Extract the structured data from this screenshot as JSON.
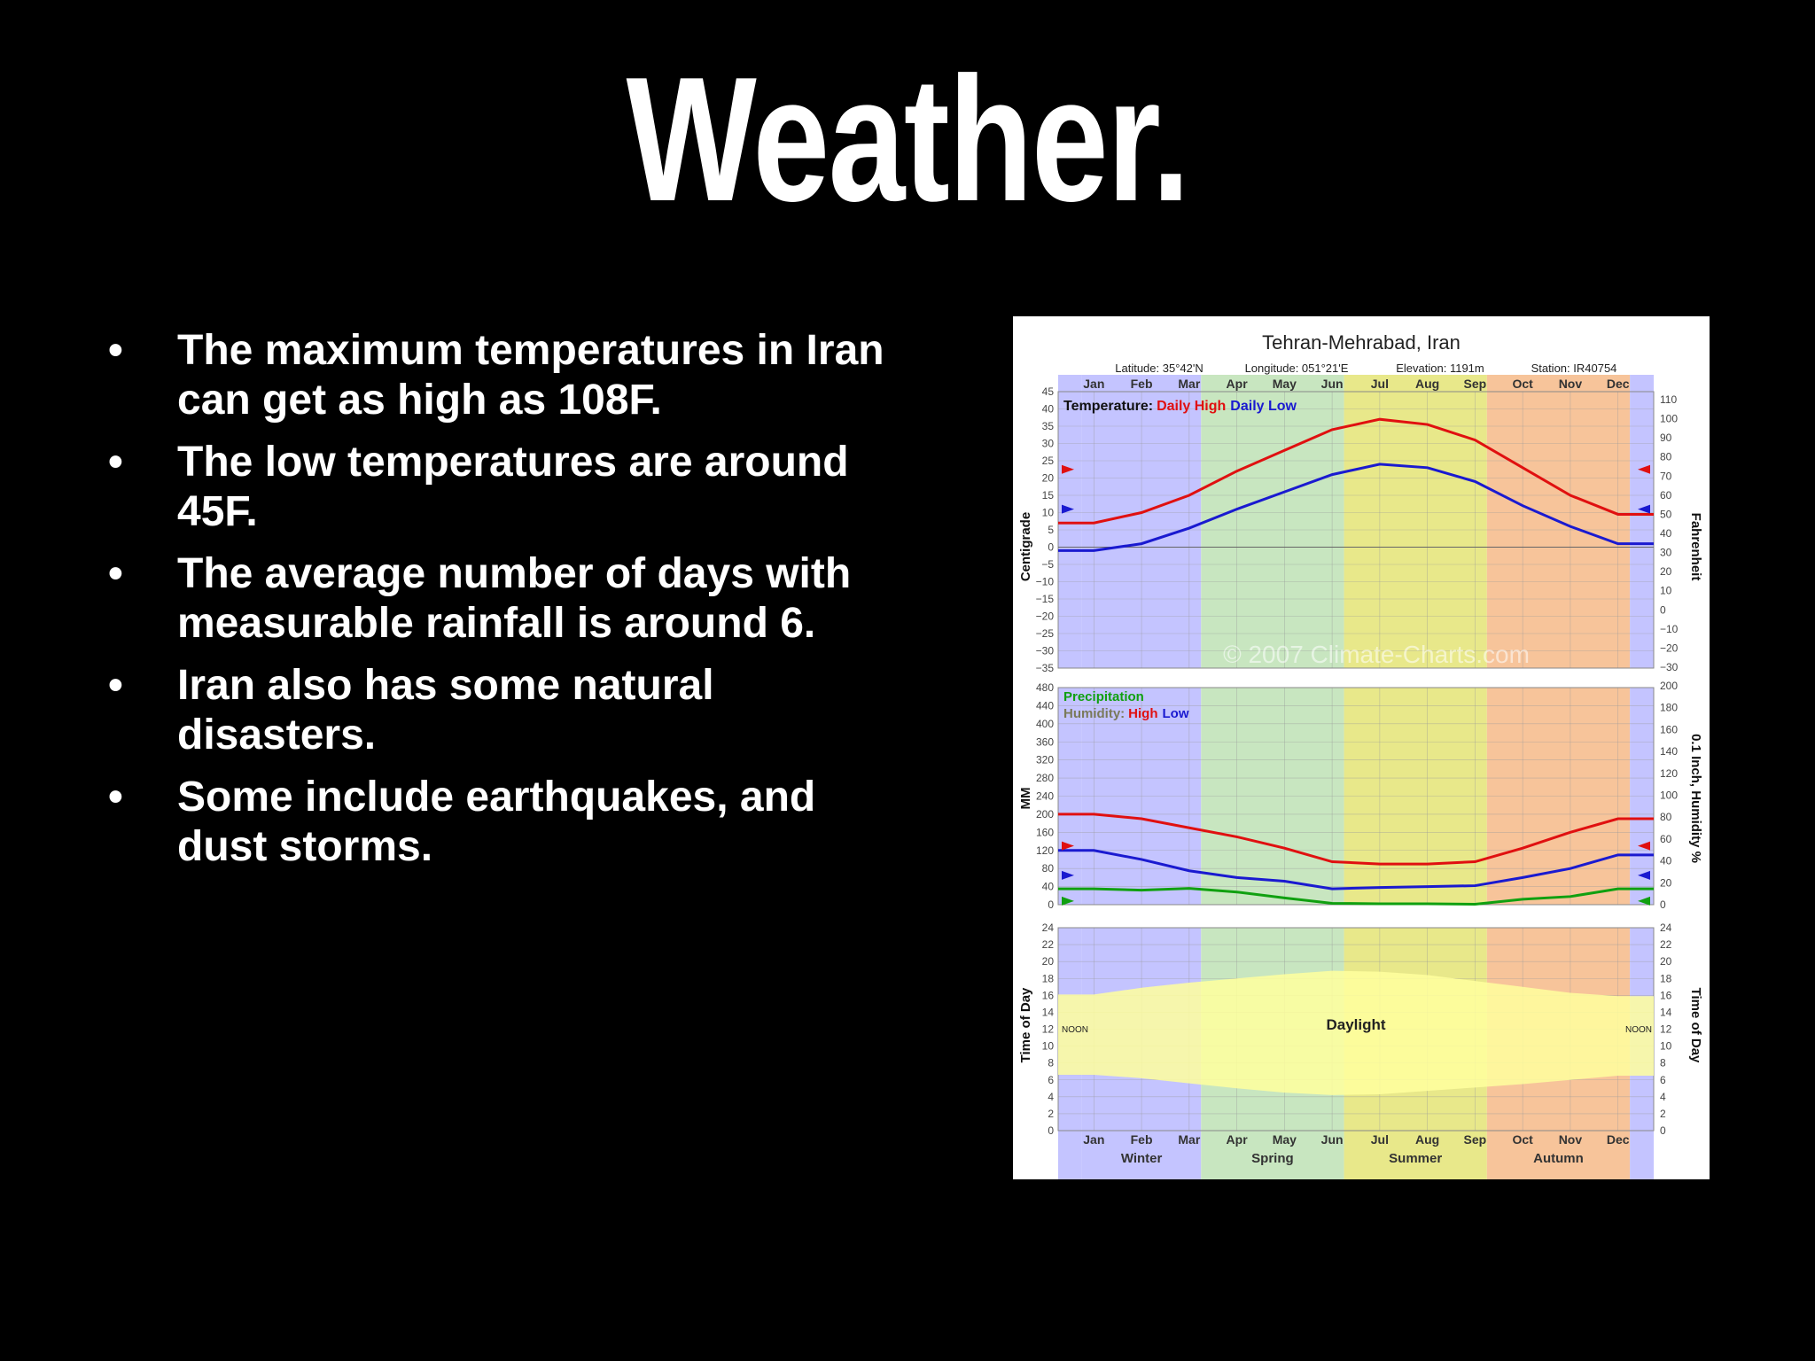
{
  "slide": {
    "title": "Weather.",
    "bullet_glyph": "•",
    "bullets": [
      "The maximum temperatures in Iran can get as high as 108F.",
      "The low temperatures are around 45F.",
      "The average number of days with measurable rainfall is around 6.",
      "Iran also has some natural disasters.",
      "Some include earthquakes, and dust storms."
    ]
  },
  "colors": {
    "temp_high": "#e01010",
    "temp_low": "#1a1ad0",
    "precip": "#10a010",
    "winter": "#c4c4ff",
    "spring": "#c8e6c0",
    "summer": "#e8e88a",
    "autumn": "#f7c49a",
    "daylight": "#ffff9e"
  },
  "chart_data": {
    "title": "Tehran-Mehrabad,  Iran",
    "info": {
      "latitude": "Latitude: 35°42'N",
      "longitude": "Longitude: 051°21'E",
      "elevation": "Elevation: 1191m",
      "station": "Station: IR40754"
    },
    "watermark": "© 2007 Climate-Charts.com",
    "months": [
      "Jan",
      "Feb",
      "Mar",
      "Apr",
      "May",
      "Jun",
      "Jul",
      "Aug",
      "Sep",
      "Oct",
      "Nov",
      "Dec"
    ],
    "seasons": [
      {
        "name": "Winter",
        "color": "#c4c4ff",
        "start": 0,
        "end": 2.5
      },
      {
        "name": "Spring",
        "color": "#c8e6c0",
        "start": 2.5,
        "end": 5.5
      },
      {
        "name": "Summer",
        "color": "#e8e88a",
        "start": 5.5,
        "end": 8.5
      },
      {
        "name": "Autumn",
        "color": "#f7c49a",
        "start": 8.5,
        "end": 11.5
      }
    ],
    "temperature": {
      "type": "line",
      "legend_label": "Temperature:",
      "series": [
        {
          "name": "Daily High",
          "color": "#e01010",
          "values": [
            7,
            10,
            15,
            22,
            28,
            34,
            37,
            35.5,
            31,
            23,
            15,
            9.5
          ]
        },
        {
          "name": "Daily Low",
          "color": "#1a1ad0",
          "values": [
            -1,
            1,
            5.5,
            11,
            16,
            21,
            24,
            23,
            19,
            12,
            6,
            1
          ]
        }
      ],
      "ylabel_left": "Centigrade",
      "ylabel_right": "Fahrenheit",
      "ylim_c": [
        -35,
        45
      ],
      "ticks_c": [
        "45",
        "40",
        "35",
        "30",
        "25",
        "20",
        "15",
        "10",
        "5",
        "0",
        "−5",
        "−10",
        "−15",
        "−20",
        "−25",
        "−30",
        "−35"
      ],
      "ticks_f": [
        "110",
        "100",
        "90",
        "80",
        "70",
        "60",
        "50",
        "40",
        "30",
        "20",
        "10",
        "0",
        "−10",
        "−20",
        "−30"
      ],
      "annual_mean_markers": {
        "high": 22.5,
        "low": 11
      }
    },
    "precipitation": {
      "type": "line",
      "legend_precip": "Precipitation",
      "legend_humidity": "Humidity:",
      "series": [
        {
          "name": "High",
          "color": "#e01010",
          "values": [
            200,
            190,
            170,
            150,
            125,
            95,
            90,
            90,
            95,
            125,
            160,
            190
          ]
        },
        {
          "name": "Low",
          "color": "#1a1ad0",
          "values": [
            120,
            100,
            75,
            60,
            52,
            35,
            38,
            40,
            42,
            60,
            80,
            110
          ]
        },
        {
          "name": "Precipitation",
          "color": "#10a010",
          "values": [
            35,
            32,
            36,
            28,
            15,
            3,
            2,
            2,
            1,
            12,
            18,
            35
          ]
        }
      ],
      "ylabel_left": "MM",
      "ylabel_right": "0.1 Inch, Humidity %",
      "ylim_mm": [
        0,
        480
      ],
      "ticks_mm": [
        "480",
        "440",
        "400",
        "360",
        "320",
        "280",
        "240",
        "200",
        "160",
        "120",
        "80",
        "40",
        "0"
      ],
      "ticks_right": [
        "200",
        "180",
        "160",
        "140",
        "120",
        "100",
        "80",
        "60",
        "40",
        "20",
        "0"
      ]
    },
    "daylight": {
      "type": "area",
      "label": "Daylight",
      "noon_label": "NOON",
      "ylabel": "Time of Day",
      "ylim_hours": [
        0,
        24
      ],
      "ticks": [
        "24",
        "22",
        "20",
        "18",
        "16",
        "14",
        "12",
        "10",
        "8",
        "6",
        "4",
        "2",
        "0"
      ],
      "sunrise": [
        6.6,
        6.2,
        5.6,
        5.0,
        4.5,
        4.2,
        4.3,
        4.7,
        5.1,
        5.5,
        6.0,
        6.5
      ],
      "sunset": [
        16.1,
        16.9,
        17.5,
        18.0,
        18.5,
        18.9,
        18.8,
        18.4,
        17.7,
        17.0,
        16.3,
        15.9
      ]
    }
  }
}
